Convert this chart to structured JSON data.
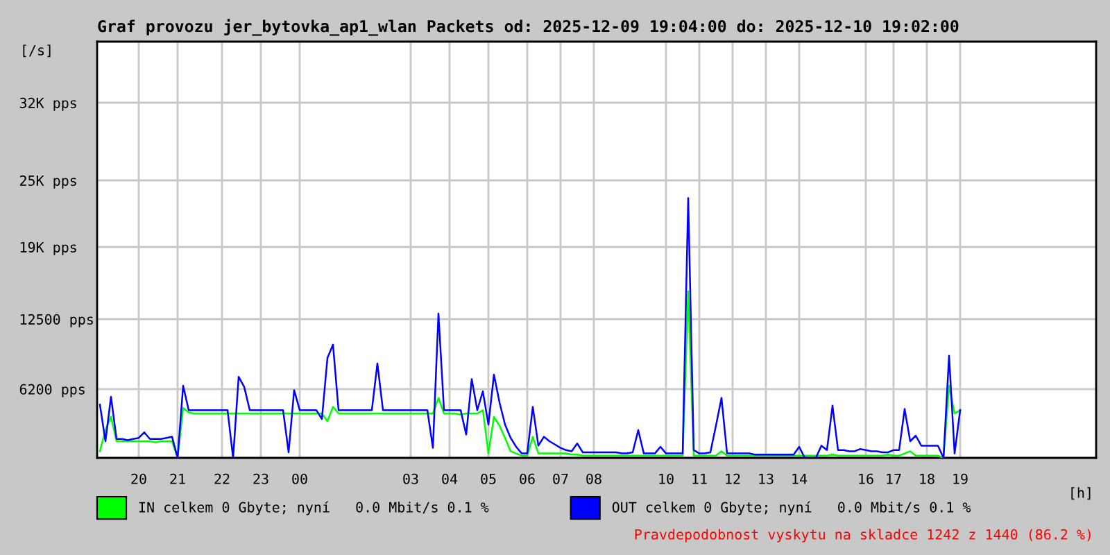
{
  "chart_data": {
    "type": "line",
    "title": "Graf provozu jer_bytovka_ap1_wlan Packets od: 2025-12-09 19:04:00 do: 2025-12-10 19:02:00",
    "xlabel": "[h]",
    "ylabel": "[/s]",
    "annotations": [
      "Pravdepodobnost vyskytu na skladce 1242 z 1440 (86.2 %)"
    ],
    "categories": [
      null,
      null,
      null,
      null,
      null,
      null,
      null,
      "20",
      null,
      null,
      null,
      null,
      null,
      null,
      "21",
      null,
      null,
      null,
      null,
      null,
      null,
      null,
      "22",
      null,
      null,
      null,
      null,
      null,
      null,
      "23",
      null,
      null,
      null,
      null,
      null,
      null,
      "00",
      null,
      null,
      null,
      null,
      null,
      null,
      null,
      null,
      null,
      null,
      null,
      null,
      null,
      null,
      null,
      null,
      null,
      null,
      null,
      "03",
      null,
      null,
      null,
      null,
      null,
      null,
      "04",
      null,
      null,
      null,
      null,
      null,
      null,
      "05",
      null,
      null,
      null,
      null,
      null,
      null,
      "06",
      null,
      null,
      null,
      null,
      null,
      "07",
      null,
      null,
      null,
      null,
      null,
      "08",
      null,
      null,
      null,
      null,
      null,
      null,
      null,
      null,
      null,
      null,
      null,
      null,
      "10",
      null,
      null,
      null,
      null,
      null,
      "11",
      null,
      null,
      null,
      null,
      null,
      "12",
      null,
      null,
      null,
      null,
      null,
      "13",
      null,
      null,
      null,
      null,
      null,
      "14",
      null,
      null,
      null,
      null,
      null,
      null,
      null,
      null,
      null,
      null,
      null,
      "16",
      null,
      null,
      null,
      null,
      "17",
      null,
      null,
      null,
      null,
      null,
      "18",
      null,
      null,
      null,
      null,
      null,
      "19",
      null,
      null,
      null,
      null,
      null,
      null,
      null,
      null,
      null,
      null,
      null,
      null,
      null,
      null,
      null,
      null,
      null,
      null,
      null,
      null,
      null,
      null,
      null,
      null
    ],
    "ylim": [
      0,
      37500
    ],
    "yticks": [
      {
        "value": 6200,
        "label": "6200 pps"
      },
      {
        "value": 12500,
        "label": "12500 pps"
      },
      {
        "value": 19000,
        "label": "19K pps"
      },
      {
        "value": 25000,
        "label": "25K pps"
      },
      {
        "value": 32000,
        "label": "32K pps"
      }
    ],
    "grid": true,
    "legend": "bottom",
    "series": [
      {
        "name": "IN celkem 0 Gbyte; nyní   0.0 Mbit/s 0.1 %",
        "color": "#00ff00",
        "values": [
          600,
          2500,
          3700,
          1500,
          1500,
          1500,
          1500,
          1500,
          1500,
          1500,
          1400,
          1500,
          1500,
          1500,
          0,
          4500,
          4100,
          4000,
          4000,
          4000,
          4000,
          4000,
          4000,
          4000,
          4000,
          4000,
          4000,
          4000,
          4000,
          4000,
          4000,
          4000,
          4000,
          4000,
          4000,
          4000,
          4000,
          4000,
          4000,
          4000,
          4000,
          3300,
          4600,
          4000,
          4000,
          4000,
          4000,
          4000,
          4000,
          4000,
          4000,
          4000,
          4000,
          4000,
          4000,
          4000,
          4000,
          4000,
          4000,
          4000,
          4000,
          5400,
          4000,
          4000,
          4000,
          3900,
          4000,
          4000,
          4000,
          4300,
          400,
          3700,
          2900,
          1800,
          600,
          400,
          200,
          200,
          1900,
          400,
          400,
          400,
          400,
          400,
          400,
          300,
          300,
          200,
          200,
          200,
          200,
          200,
          200,
          200,
          200,
          200,
          200,
          200,
          200,
          200,
          200,
          200,
          200,
          200,
          200,
          200,
          15000,
          200,
          200,
          200,
          200,
          200,
          600,
          200,
          200,
          200,
          200,
          200,
          200,
          200,
          200,
          200,
          200,
          200,
          200,
          200,
          200,
          200,
          200,
          200,
          200,
          200,
          300,
          200,
          200,
          200,
          200,
          200,
          200,
          200,
          200,
          200,
          300,
          200,
          200,
          400,
          600,
          200,
          200,
          200,
          200,
          200,
          0,
          6500,
          4000,
          4300,
          null,
          null,
          null,
          null,
          null,
          null,
          null,
          null,
          null,
          null,
          null,
          null,
          null,
          null,
          null,
          null,
          null,
          null,
          null,
          null,
          null,
          null,
          null,
          null
        ]
      },
      {
        "name": "OUT celkem 0 Gbyte; nyní   0.0 Mbit/s 0.1 %",
        "color": "#0000ff",
        "values": [
          4800,
          1500,
          5500,
          1700,
          1700,
          1600,
          1700,
          1800,
          2300,
          1700,
          1700,
          1700,
          1800,
          1900,
          0,
          6500,
          4300,
          4300,
          4300,
          4300,
          4300,
          4300,
          4300,
          4300,
          0,
          7300,
          6400,
          4300,
          4300,
          4300,
          4300,
          4300,
          4300,
          4300,
          500,
          6100,
          4300,
          4300,
          4300,
          4300,
          3500,
          9000,
          10200,
          4300,
          4300,
          4300,
          4300,
          4300,
          4300,
          4300,
          8500,
          4300,
          4300,
          4300,
          4300,
          4300,
          4300,
          4300,
          4300,
          4300,
          900,
          13000,
          4300,
          4300,
          4300,
          4300,
          2100,
          7100,
          4300,
          6000,
          3000,
          7500,
          5000,
          3000,
          1800,
          1000,
          400,
          400,
          4600,
          1100,
          1900,
          1500,
          1200,
          900,
          700,
          600,
          1300,
          500,
          500,
          500,
          500,
          500,
          500,
          500,
          400,
          400,
          500,
          2500,
          400,
          400,
          400,
          1000,
          400,
          400,
          400,
          400,
          23400,
          700,
          400,
          400,
          500,
          2900,
          5400,
          400,
          400,
          400,
          400,
          400,
          300,
          300,
          300,
          300,
          300,
          300,
          300,
          300,
          1000,
          0,
          0,
          0,
          1100,
          700,
          4700,
          700,
          700,
          600,
          600,
          800,
          700,
          600,
          600,
          500,
          500,
          700,
          700,
          4400,
          1500,
          2000,
          1100,
          1100,
          1100,
          1100,
          0,
          9200,
          400,
          4300,
          null,
          null,
          null,
          null,
          null,
          null,
          null,
          null,
          null,
          null,
          null,
          null,
          null,
          null,
          null,
          null,
          null,
          null,
          null,
          null,
          null,
          null,
          null,
          null
        ]
      }
    ]
  }
}
